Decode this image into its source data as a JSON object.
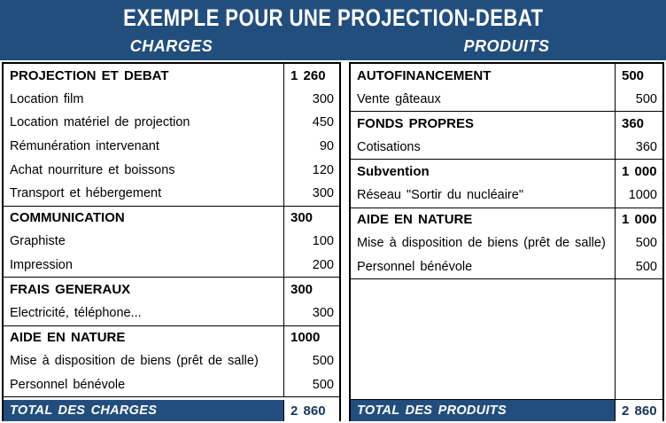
{
  "title": "EXEMPLE POUR UNE PROJECTION-DEBAT",
  "colors": {
    "header_bg": "#224E7D",
    "total_row_bg": "#224E7D",
    "total_value_text": "#17365D",
    "grid_border": "#000000"
  },
  "charges": {
    "header": "CHARGES",
    "sections": [
      {
        "rows": [
          {
            "label": "PROJECTION ET DEBAT",
            "value": "1 260",
            "bold": true
          },
          {
            "label": "Location film",
            "value": "300"
          },
          {
            "label": "Location matériel de projection",
            "value": "450"
          },
          {
            "label": "Rémunération intervenant",
            "value": "90"
          },
          {
            "label": "Achat nourriture et boissons",
            "value": "120"
          },
          {
            "label": "Transport et hébergement",
            "value": "300"
          }
        ]
      },
      {
        "rows": [
          {
            "label": "COMMUNICATION",
            "value": "300",
            "bold": true
          },
          {
            "label": "Graphiste",
            "value": "100"
          },
          {
            "label": "Impression",
            "value": "200"
          }
        ]
      },
      {
        "rows": [
          {
            "label": "FRAIS GENERAUX",
            "value": "300",
            "bold": true
          },
          {
            "label": "Electricité,  téléphone...",
            "value": "300"
          }
        ]
      },
      {
        "rows": [
          {
            "label": "AIDE EN NATURE",
            "value": "1000",
            "bold": true
          },
          {
            "label": "Mise à disposition de biens (prêt de salle)",
            "value": "500"
          },
          {
            "label": "Personnel bénévole",
            "value": "500"
          }
        ]
      }
    ],
    "filler": false,
    "total": {
      "label": "TOTAL DES CHARGES",
      "value": "2 860"
    }
  },
  "produits": {
    "header": "PRODUITS",
    "sections": [
      {
        "rows": [
          {
            "label": "AUTOFINANCEMENT",
            "value": "500",
            "bold": true
          },
          {
            "label": "Vente gâteaux",
            "value": "500"
          }
        ]
      },
      {
        "rows": [
          {
            "label": "FONDS PROPRES",
            "value": "360",
            "bold": true
          },
          {
            "label": "Cotisations",
            "value": "360"
          }
        ]
      },
      {
        "rows": [
          {
            "label": "Subvention",
            "value": "1 000",
            "bold": true
          },
          {
            "label": "Réseau \"Sortir du nucléaire\"",
            "value": "1000"
          }
        ]
      },
      {
        "rows": [
          {
            "label": "AIDE EN NATURE",
            "value": "1 000",
            "bold": true
          },
          {
            "label": "Mise à disposition de biens (prêt de salle)",
            "value": "500"
          },
          {
            "label": "Personnel bénévole",
            "value": "500"
          }
        ]
      }
    ],
    "filler": true,
    "total": {
      "label": "TOTAL DES PRODUITS",
      "value": "2 860"
    }
  }
}
